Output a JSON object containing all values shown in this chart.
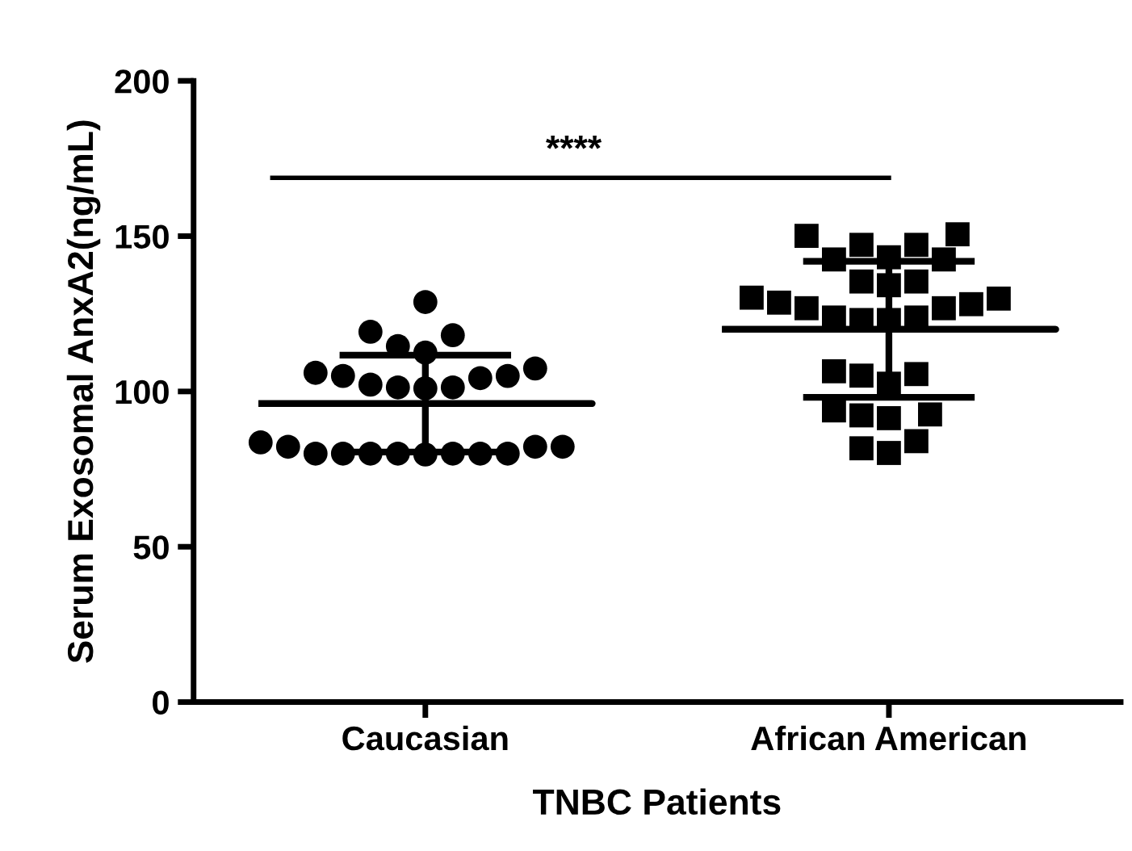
{
  "chart_data": {
    "type": "scatter",
    "xlabel": "TNBC Patients",
    "ylabel": "Serum Exosomal AnxA2(ng/mL)",
    "categories": [
      "Caucasian",
      "African American"
    ],
    "ylim": [
      0,
      200
    ],
    "yticks": [
      0,
      50,
      100,
      150,
      200
    ],
    "grid": false,
    "legend": false,
    "annotations": [
      "****"
    ],
    "series": [
      {
        "marker": "circle",
        "color": "#000000",
        "x": [
          "Caucasian",
          "Caucasian",
          "Caucasian",
          "Caucasian",
          "Caucasian",
          "Caucasian",
          "Caucasian",
          "Caucasian",
          "Caucasian",
          "Caucasian",
          "Caucasian",
          "Caucasian",
          "Caucasian",
          "Caucasian",
          "Caucasian",
          "Caucasian",
          "Caucasian",
          "Caucasian",
          "Caucasian",
          "Caucasian",
          "Caucasian",
          "Caucasian",
          "Caucasian",
          "Caucasian",
          "Caucasian",
          "Caucasian"
        ],
        "values": [
          128.8,
          119.2,
          118.1,
          114.6,
          112.5,
          106,
          105,
          102.2,
          101.3,
          101,
          101.3,
          104.3,
          105,
          107.4,
          82.2,
          82.2,
          80,
          79.7,
          80,
          80,
          80,
          80,
          80,
          80,
          82.2,
          83.6
        ]
      },
      {
        "marker": "square",
        "color": "#000000",
        "x": [
          "African American",
          "African American",
          "African American",
          "African American",
          "African American",
          "African American",
          "African American",
          "African American",
          "African American",
          "African American",
          "African American",
          "African American",
          "African American",
          "African American",
          "African American",
          "African American",
          "African American",
          "African American",
          "African American",
          "African American",
          "African American",
          "African American",
          "African American",
          "African American",
          "African American",
          "African American",
          "African American",
          "African American",
          "African American",
          "African American",
          "African American"
        ],
        "values": [
          150.6,
          147.2,
          147.2,
          150.1,
          142.5,
          142.5,
          143.2,
          135.4,
          134.2,
          135.4,
          130.2,
          128.6,
          126.8,
          123.8,
          123,
          123,
          123.8,
          126.8,
          128.1,
          129.9,
          106.5,
          105.1,
          105.6,
          102.5,
          92.6,
          92.3,
          91.4,
          93.9,
          84,
          80.2,
          81.7
        ]
      },
      {
        "type": "box",
        "color": "#000000",
        "boxes": [
          {
            "low": 80.5,
            "q1": 96.1,
            "median": 96.1,
            "q3": 96.1,
            "high": 111.7
          },
          {
            "low": 98.1,
            "q1": 120,
            "median": 120,
            "q3": 120,
            "high": 141.9
          }
        ]
      }
    ]
  }
}
